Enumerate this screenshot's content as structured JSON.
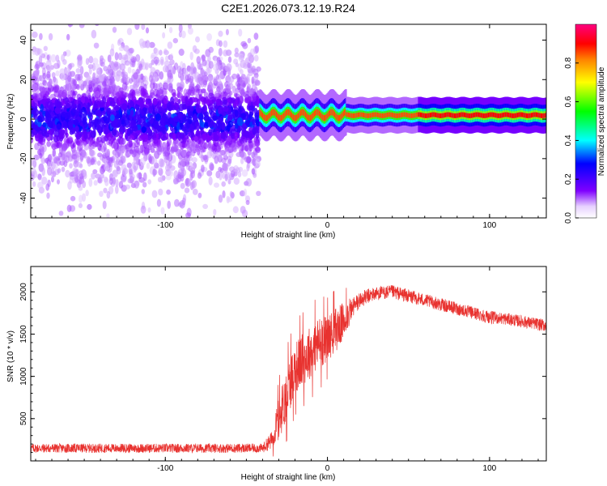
{
  "title": "C2E1.2026.073.12.19.R24",
  "chart_data": [
    {
      "type": "heatmap",
      "xlabel": "Height of straight line (km)",
      "ylabel": "Frequency (Hz)",
      "xlim": [
        -183,
        135
      ],
      "ylim": [
        -50,
        48
      ],
      "xticks": [
        -100,
        0,
        100
      ],
      "yticks": [
        -40,
        -20,
        0,
        20,
        40
      ],
      "colorbar": {
        "label": "Normalized spectral amplitude",
        "range": [
          0,
          1
        ],
        "ticks": [
          "0.0",
          "0.2",
          "0.4",
          "0.6",
          "0.8"
        ]
      },
      "regions": [
        {
          "x_range": [
            -183,
            -42
          ],
          "description_values": {
            "freq_center": 0,
            "freq_spread": 45,
            "max_amplitude": 0.3
          }
        },
        {
          "x_range": [
            -42,
            135
          ],
          "description_values": {
            "freq_center": 2,
            "freq_spread": 3,
            "max_amplitude": 1.0
          }
        }
      ]
    },
    {
      "type": "line",
      "xlabel": "Height of straight line (km)",
      "ylabel": "SNR (10 * v/v)",
      "xlim": [
        -183,
        135
      ],
      "ylim": [
        0,
        2300
      ],
      "xticks": [
        -100,
        0,
        100
      ],
      "yticks": [
        500,
        1000,
        1500,
        2000
      ],
      "line_color": "#e8322f",
      "envelope": {
        "x": [
          -183,
          -100,
          -40,
          -34,
          -30,
          -25,
          -20,
          -15,
          -10,
          -5,
          0,
          5,
          10,
          15,
          20,
          25,
          30,
          40,
          50,
          60,
          70,
          80,
          90,
          100,
          110,
          120,
          135
        ],
        "mean": [
          150,
          150,
          150,
          250,
          500,
          800,
          1100,
          1200,
          1300,
          1400,
          1450,
          1550,
          1650,
          1800,
          1900,
          1950,
          1980,
          2000,
          1950,
          1900,
          1850,
          1800,
          1750,
          1700,
          1680,
          1650,
          1600
        ],
        "noise": [
          60,
          60,
          60,
          120,
          300,
          350,
          350,
          350,
          350,
          350,
          300,
          300,
          250,
          150,
          110,
          100,
          90,
          90,
          90,
          85,
          85,
          85,
          85,
          85,
          80,
          80,
          80
        ]
      }
    }
  ]
}
